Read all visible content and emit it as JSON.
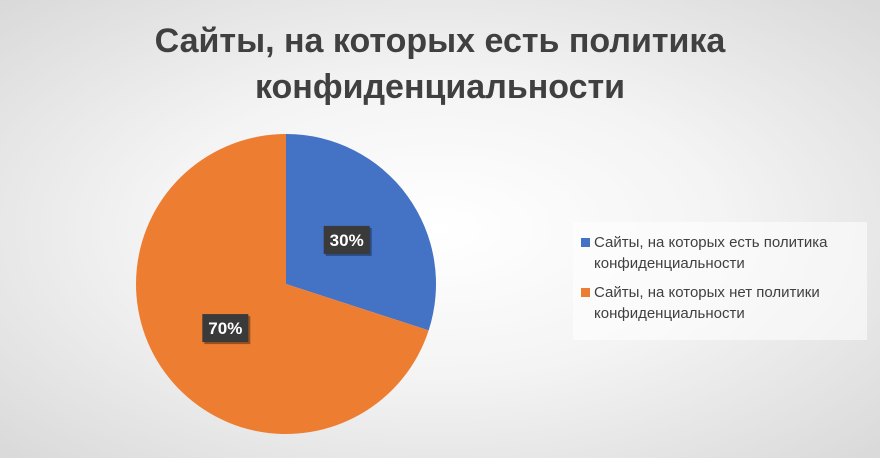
{
  "chart_data": {
    "type": "pie",
    "title_lines": [
      "Сайты, на которых есть политика",
      "конфиденциальности"
    ],
    "slices": [
      {
        "name": "Сайты, на которых есть политика конфиденциальности",
        "value": 30,
        "label": "30%",
        "color": "#4472C4"
      },
      {
        "name": "Сайты, на которых нет политики конфиденциальности",
        "value": 70,
        "label": "70%",
        "color": "#ED7D31"
      }
    ],
    "legend_position": "right",
    "legend": [
      {
        "lines": [
          "Сайты, на которых есть политика",
          "конфиденциальности"
        ],
        "color": "#4472C4"
      },
      {
        "lines": [
          "Сайты, на которых нет политики",
          "конфиденциальности"
        ],
        "color": "#ED7D31"
      }
    ]
  }
}
